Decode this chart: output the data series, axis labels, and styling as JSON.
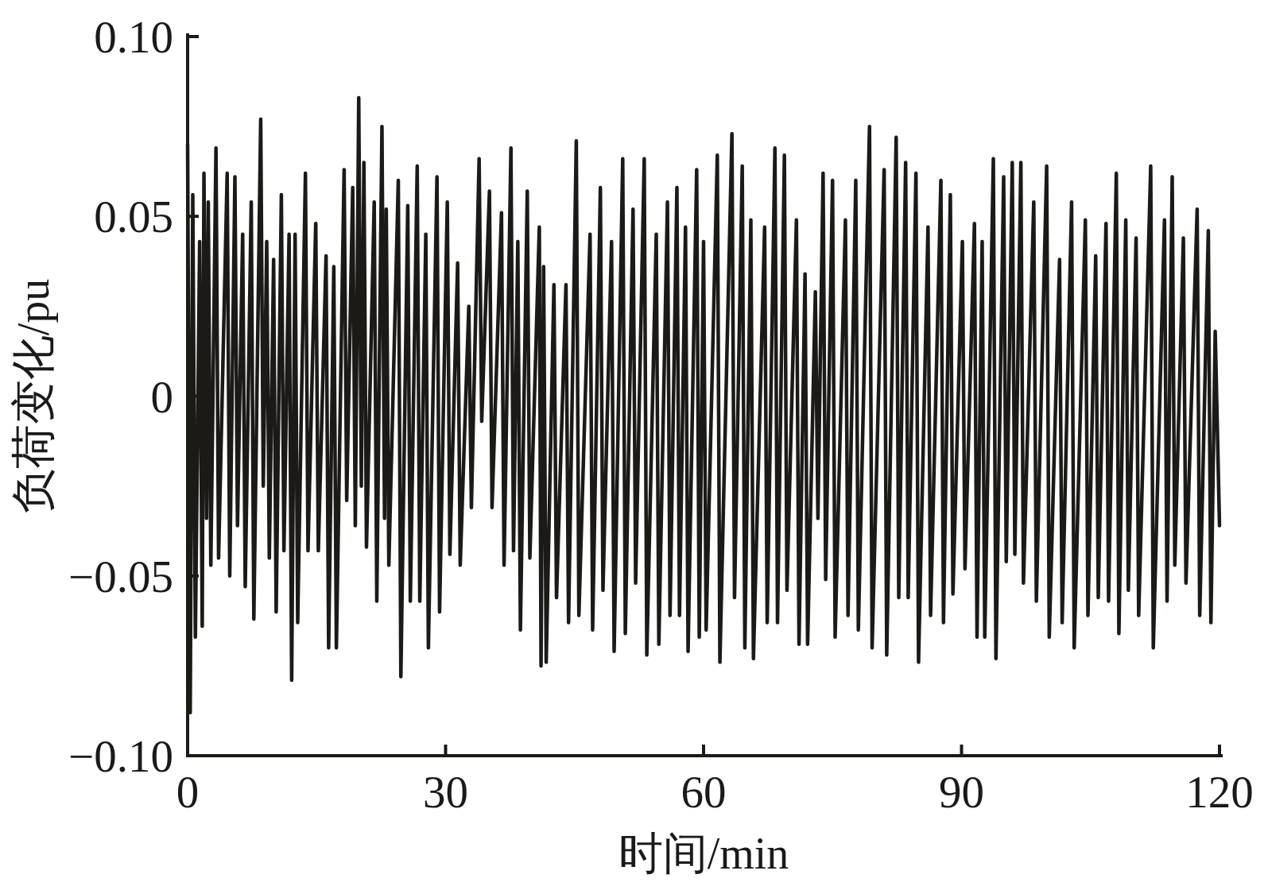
{
  "chart_data": {
    "type": "line",
    "xlabel": "时间/min",
    "ylabel": "负荷变化/pu",
    "color": "#1c1a17",
    "x": [
      0,
      0.3,
      0.6,
      0.9,
      1.4,
      1.7,
      1.9,
      2.2,
      2.4,
      2.7,
      3.3,
      3.6,
      4.6,
      4.9,
      5.5,
      5.8,
      6.4,
      6.7,
      7.4,
      7.7,
      8.5,
      8.8,
      9.2,
      9.5,
      10.0,
      10.3,
      10.9,
      11.2,
      11.8,
      12.1,
      12.5,
      12.8,
      13.7,
      14.0,
      14.9,
      15.2,
      16.1,
      16.4,
      17.0,
      17.3,
      18.2,
      18.5,
      19.2,
      19.5,
      19.9,
      20.2,
      20.5,
      20.8,
      21.7,
      22.0,
      22.6,
      22.9,
      23.1,
      23.4,
      24.5,
      24.8,
      25.6,
      25.9,
      26.7,
      27.0,
      27.7,
      28.0,
      29.0,
      29.3,
      30.2,
      30.5,
      31.4,
      31.7,
      32.7,
      33.0,
      33.9,
      34.2,
      35.1,
      35.4,
      36.5,
      36.8,
      37.6,
      37.9,
      38.4,
      38.7,
      39.5,
      39.8,
      40.9,
      41.1,
      41.4,
      41.7,
      42.6,
      42.9,
      44.0,
      44.3,
      45.2,
      45.5,
      46.8,
      47.1,
      48.0,
      48.3,
      49.3,
      49.6,
      50.6,
      50.9,
      51.8,
      52.1,
      53.1,
      53.4,
      54.5,
      54.8,
      55.8,
      56.1,
      56.9,
      57.2,
      57.9,
      58.2,
      59.2,
      59.5,
      60.0,
      60.3,
      61.6,
      61.9,
      63.3,
      63.6,
      64.5,
      64.8,
      65.5,
      65.8,
      67.1,
      67.4,
      68.3,
      68.6,
      69.4,
      69.7,
      70.8,
      71.1,
      71.8,
      72.1,
      73.0,
      73.3,
      73.9,
      74.2,
      75.0,
      75.3,
      76.5,
      76.8,
      77.7,
      78.0,
      79.3,
      79.6,
      81.0,
      81.3,
      82.4,
      82.7,
      83.5,
      83.8,
      84.7,
      85.0,
      86.1,
      86.4,
      87.6,
      87.9,
      88.7,
      89.0,
      90.1,
      90.4,
      91.5,
      91.8,
      92.4,
      92.7,
      93.7,
      94.0,
      94.9,
      95.2,
      95.9,
      96.2,
      96.9,
      97.2,
      98.4,
      98.7,
      99.9,
      100.2,
      101.4,
      101.7,
      102.8,
      103.1,
      104.4,
      104.7,
      105.6,
      105.9,
      106.8,
      107.1,
      108.0,
      108.3,
      109.1,
      109.4,
      110.3,
      110.6,
      112.0,
      112.3,
      113.6,
      113.9,
      114.5,
      114.8,
      115.8,
      116.1,
      117.4,
      117.7,
      118.7,
      119.0,
      119.5,
      120.0
    ],
    "values": [
      0.07,
      -0.088,
      0.056,
      -0.067,
      0.043,
      -0.064,
      0.062,
      -0.034,
      0.054,
      -0.047,
      0.069,
      -0.045,
      0.062,
      -0.05,
      0.061,
      -0.036,
      0.045,
      -0.053,
      0.054,
      -0.062,
      0.077,
      -0.025,
      0.043,
      -0.045,
      0.038,
      -0.06,
      0.056,
      -0.043,
      0.045,
      -0.079,
      0.045,
      -0.063,
      0.062,
      -0.043,
      0.048,
      -0.043,
      0.039,
      -0.07,
      0.036,
      -0.07,
      0.063,
      -0.029,
      0.058,
      -0.036,
      0.083,
      -0.025,
      0.065,
      -0.042,
      0.054,
      -0.057,
      0.075,
      -0.034,
      0.052,
      -0.047,
      0.06,
      -0.078,
      0.053,
      -0.057,
      0.064,
      -0.057,
      0.045,
      -0.07,
      0.061,
      -0.06,
      0.054,
      -0.044,
      0.037,
      -0.047,
      0.025,
      -0.031,
      0.066,
      -0.007,
      0.057,
      -0.031,
      0.051,
      -0.047,
      0.069,
      -0.043,
      0.043,
      -0.065,
      0.057,
      -0.045,
      0.047,
      -0.075,
      0.036,
      -0.074,
      0.031,
      -0.056,
      0.031,
      -0.063,
      0.071,
      -0.061,
      0.045,
      -0.065,
      0.058,
      -0.054,
      0.043,
      -0.071,
      0.066,
      -0.066,
      0.052,
      -0.052,
      0.066,
      -0.072,
      0.045,
      -0.069,
      0.054,
      -0.061,
      0.058,
      -0.061,
      0.047,
      -0.071,
      0.063,
      -0.067,
      0.043,
      -0.065,
      0.067,
      -0.074,
      0.073,
      -0.056,
      0.064,
      -0.07,
      0.049,
      -0.073,
      0.047,
      -0.063,
      0.069,
      -0.063,
      0.067,
      -0.054,
      0.049,
      -0.069,
      0.034,
      -0.069,
      0.029,
      -0.034,
      0.062,
      -0.051,
      0.06,
      -0.067,
      0.049,
      -0.061,
      0.06,
      -0.065,
      0.075,
      -0.07,
      0.063,
      -0.072,
      0.072,
      -0.056,
      0.065,
      -0.056,
      0.062,
      -0.074,
      0.047,
      -0.061,
      0.06,
      -0.063,
      0.056,
      -0.055,
      0.043,
      -0.048,
      0.048,
      -0.067,
      0.043,
      -0.067,
      0.066,
      -0.073,
      0.061,
      -0.046,
      0.065,
      -0.044,
      0.065,
      -0.052,
      0.054,
      -0.057,
      0.064,
      -0.067,
      0.038,
      -0.063,
      0.054,
      -0.07,
      0.049,
      -0.061,
      0.039,
      -0.056,
      0.048,
      -0.057,
      0.062,
      -0.066,
      0.049,
      -0.054,
      0.044,
      -0.061,
      0.064,
      -0.07,
      0.049,
      -0.057,
      0.061,
      -0.047,
      0.044,
      -0.052,
      0.052,
      -0.061,
      0.046,
      -0.063,
      0.018,
      -0.036
    ],
    "xlim": [
      0,
      120
    ],
    "ylim": [
      -0.1,
      0.1
    ],
    "xticks": [
      0,
      30,
      60,
      90,
      120
    ],
    "yticks": [
      {
        "value": -0.1,
        "label": "−0.10"
      },
      {
        "value": -0.05,
        "label": "−0.05"
      },
      0,
      0.05,
      {
        "value": 0.1,
        "label": "0.10"
      }
    ]
  }
}
